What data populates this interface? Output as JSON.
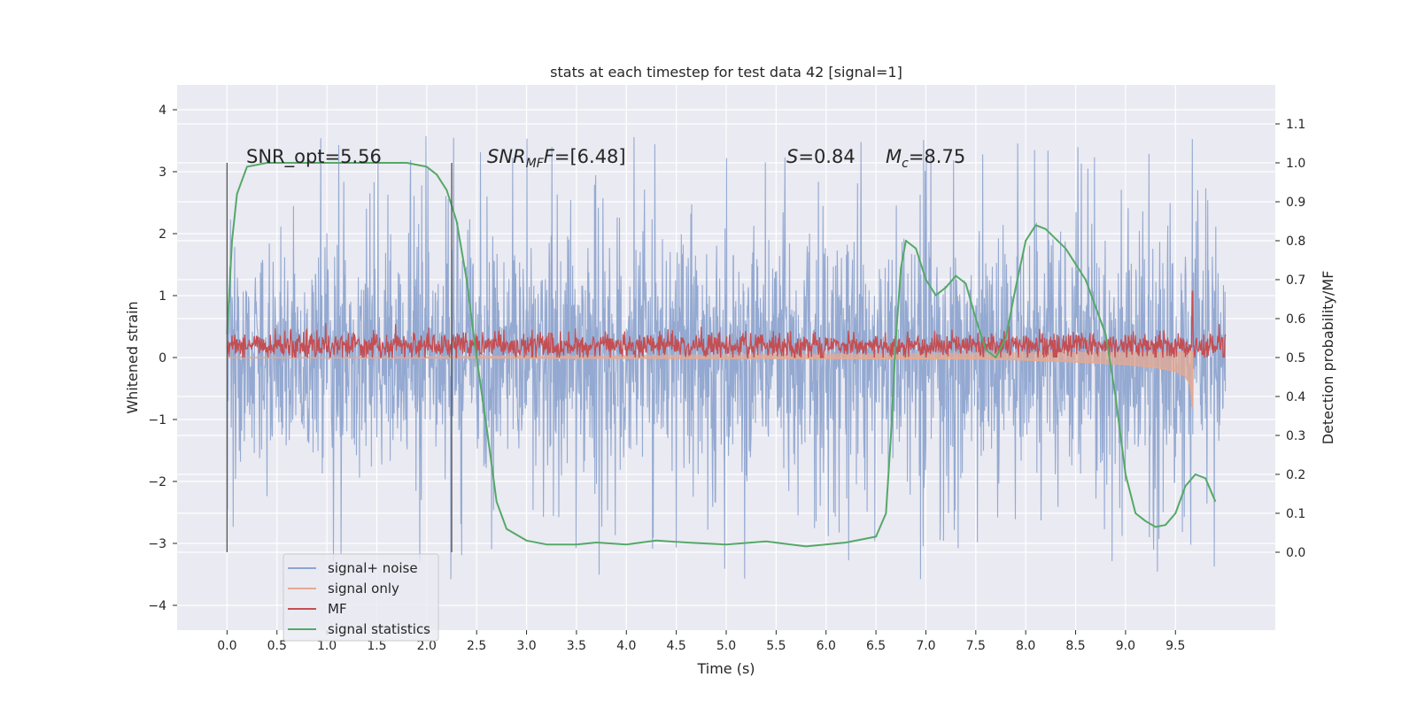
{
  "chart_data": {
    "type": "line",
    "title": "stats at each timestep for test data 42 [signal=1]",
    "xlabel": "Time (s)",
    "ylabel_left": "Whitened strain",
    "ylabel_right": "Detection probability/MF",
    "xlim": [
      -0.5,
      10.5
    ],
    "ylim_left": [
      -4.4,
      4.4
    ],
    "ylim_right": [
      -0.2,
      1.2
    ],
    "x_ticks": [
      "0.0",
      "0.5",
      "1.0",
      "1.5",
      "2.0",
      "2.5",
      "3.0",
      "3.5",
      "4.0",
      "4.5",
      "5.0",
      "5.5",
      "6.0",
      "6.5",
      "7.0",
      "7.5",
      "8.0",
      "8.5",
      "9.0",
      "9.5"
    ],
    "x_tick_values": [
      0.0,
      0.5,
      1.0,
      1.5,
      2.0,
      2.5,
      3.0,
      3.5,
      4.0,
      4.5,
      5.0,
      5.5,
      6.0,
      6.5,
      7.0,
      7.5,
      8.0,
      8.5,
      9.0,
      9.5
    ],
    "y_ticks_left": [
      4,
      3,
      2,
      1,
      0,
      -1,
      -2,
      -3,
      -4
    ],
    "y_tick_labels_left": [
      "4",
      "3",
      "2",
      "1",
      "0",
      "−1",
      "−2",
      "−3",
      "−4"
    ],
    "y_ticks_right": [
      1.1,
      1.0,
      0.9,
      0.8,
      0.7,
      0.6,
      0.5,
      0.4,
      0.3,
      0.2,
      0.1,
      0.0
    ],
    "y_tick_labels_right": [
      "1.1",
      "1.0",
      "0.9",
      "0.8",
      "0.7",
      "0.6",
      "0.5",
      "0.4",
      "0.3",
      "0.2",
      "0.1",
      "0.0"
    ],
    "grid": true,
    "legend_placement": "lower-left",
    "annotations": {
      "snr_opt": "SNR_opt=5.56",
      "snr_mf_base": "SNR",
      "snr_mf_sub": "MF",
      "snr_mf_value": "=[6.48]",
      "s_base": "S",
      "s_value": "=0.84",
      "mc_base": "M",
      "mc_sub": "c",
      "mc_value": "=8.75"
    },
    "vertical_markers": [
      0.0,
      2.25
    ],
    "series": [
      {
        "name": "signal+ noise",
        "color": "#8fa5cf",
        "axis": "left",
        "x_range": [
          0.0,
          10.0
        ],
        "y_min_typical": -2.6,
        "y_max_typical": 2.6
      },
      {
        "name": "signal only",
        "color": "#e6a991",
        "axis": "left",
        "x_range": [
          0.0,
          9.67
        ],
        "points": [
          [
            0.0,
            0.0
          ],
          [
            7.5,
            -0.02
          ],
          [
            8.0,
            -0.04
          ],
          [
            8.5,
            -0.07
          ],
          [
            9.0,
            -0.11
          ],
          [
            9.3,
            -0.16
          ],
          [
            9.5,
            -0.22
          ],
          [
            9.6,
            -0.3
          ],
          [
            9.65,
            -0.45
          ],
          [
            9.67,
            -0.8
          ],
          [
            9.67,
            0.1
          ]
        ]
      },
      {
        "name": "MF",
        "color": "#c44e52",
        "axis": "right",
        "x_range": [
          0.0,
          10.0
        ],
        "center": 0.53,
        "spike": [
          9.67,
          0.67
        ]
      },
      {
        "name": "signal statistics",
        "color": "#55a868",
        "axis": "right",
        "points": [
          [
            0.0,
            0.56
          ],
          [
            0.05,
            0.8
          ],
          [
            0.1,
            0.92
          ],
          [
            0.2,
            0.99
          ],
          [
            0.4,
            1.0
          ],
          [
            1.0,
            1.0
          ],
          [
            1.8,
            1.0
          ],
          [
            2.0,
            0.99
          ],
          [
            2.1,
            0.97
          ],
          [
            2.2,
            0.93
          ],
          [
            2.3,
            0.85
          ],
          [
            2.4,
            0.7
          ],
          [
            2.5,
            0.5
          ],
          [
            2.6,
            0.32
          ],
          [
            2.7,
            0.13
          ],
          [
            2.8,
            0.06
          ],
          [
            3.0,
            0.03
          ],
          [
            3.2,
            0.02
          ],
          [
            3.5,
            0.02
          ],
          [
            3.7,
            0.025
          ],
          [
            4.0,
            0.02
          ],
          [
            4.3,
            0.03
          ],
          [
            4.6,
            0.025
          ],
          [
            5.0,
            0.02
          ],
          [
            5.4,
            0.028
          ],
          [
            5.8,
            0.015
          ],
          [
            6.2,
            0.025
          ],
          [
            6.5,
            0.04
          ],
          [
            6.6,
            0.1
          ],
          [
            6.65,
            0.3
          ],
          [
            6.7,
            0.55
          ],
          [
            6.75,
            0.73
          ],
          [
            6.8,
            0.8
          ],
          [
            6.9,
            0.78
          ],
          [
            7.0,
            0.7
          ],
          [
            7.1,
            0.66
          ],
          [
            7.2,
            0.68
          ],
          [
            7.3,
            0.71
          ],
          [
            7.4,
            0.69
          ],
          [
            7.5,
            0.6
          ],
          [
            7.6,
            0.52
          ],
          [
            7.7,
            0.5
          ],
          [
            7.8,
            0.55
          ],
          [
            7.9,
            0.68
          ],
          [
            8.0,
            0.8
          ],
          [
            8.1,
            0.84
          ],
          [
            8.2,
            0.83
          ],
          [
            8.4,
            0.78
          ],
          [
            8.6,
            0.7
          ],
          [
            8.8,
            0.56
          ],
          [
            8.9,
            0.4
          ],
          [
            9.0,
            0.2
          ],
          [
            9.1,
            0.1
          ],
          [
            9.2,
            0.08
          ],
          [
            9.3,
            0.065
          ],
          [
            9.4,
            0.07
          ],
          [
            9.5,
            0.1
          ],
          [
            9.6,
            0.17
          ],
          [
            9.7,
            0.2
          ],
          [
            9.8,
            0.19
          ],
          [
            9.9,
            0.13
          ]
        ]
      }
    ]
  }
}
